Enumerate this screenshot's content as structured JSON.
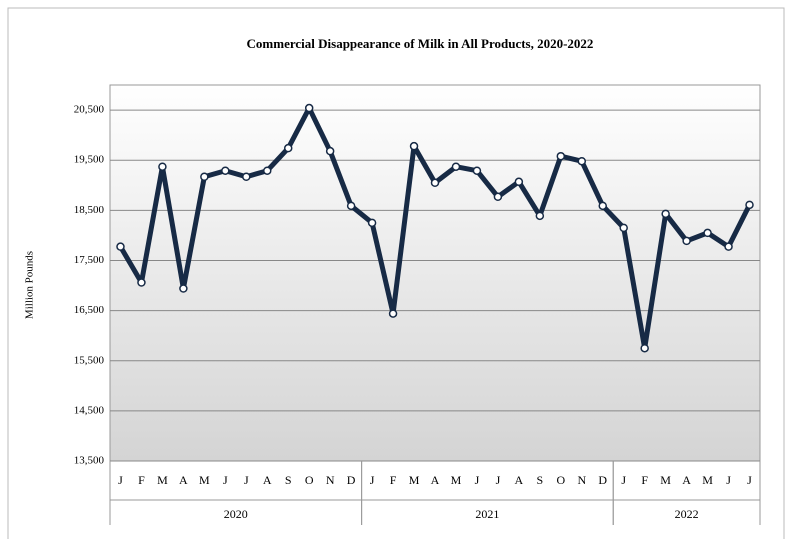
{
  "chart_data": {
    "type": "line",
    "title": "Commercial Disappearance of Milk in All Products, 2020-2022",
    "y_label": "Million Pounds",
    "categories": [
      [
        "J",
        "2020"
      ],
      [
        "F",
        "2020"
      ],
      [
        "M",
        "2020"
      ],
      [
        "A",
        "2020"
      ],
      [
        "M",
        "2020"
      ],
      [
        "J",
        "2020"
      ],
      [
        "J",
        "2020"
      ],
      [
        "A",
        "2020"
      ],
      [
        "S",
        "2020"
      ],
      [
        "O",
        "2020"
      ],
      [
        "N",
        "2020"
      ],
      [
        "D",
        "2020"
      ],
      [
        "J",
        "2021"
      ],
      [
        "F",
        "2021"
      ],
      [
        "M",
        "2021"
      ],
      [
        "A",
        "2021"
      ],
      [
        "M",
        "2021"
      ],
      [
        "J",
        "2021"
      ],
      [
        "J",
        "2021"
      ],
      [
        "A",
        "2021"
      ],
      [
        "S",
        "2021"
      ],
      [
        "O",
        "2021"
      ],
      [
        "N",
        "2021"
      ],
      [
        "D",
        "2021"
      ],
      [
        "J",
        "2022"
      ],
      [
        "F",
        "2022"
      ],
      [
        "M",
        "2022"
      ],
      [
        "A",
        "2022"
      ],
      [
        "M",
        "2022"
      ],
      [
        "J",
        "2022"
      ],
      [
        "J",
        "2022"
      ]
    ],
    "values": [
      17775,
      17060,
      19370,
      16940,
      19170,
      19290,
      19170,
      19290,
      19740,
      20540,
      19680,
      18590,
      18250,
      16440,
      19780,
      19050,
      19370,
      19290,
      18770,
      19070,
      18390,
      19580,
      19480,
      18590,
      18150,
      15750,
      18430,
      17890,
      18050,
      17775,
      18610
    ],
    "color": "#172a45",
    "ylim": [
      13500,
      21000
    ],
    "yticks": [
      {
        "value": 13500,
        "label": "13,500"
      },
      {
        "value": 14500,
        "label": "14,500"
      },
      {
        "value": 15500,
        "label": "15,500"
      },
      {
        "value": 16500,
        "label": "16,500"
      },
      {
        "value": 17500,
        "label": "17,500"
      },
      {
        "value": 18500,
        "label": "18,500"
      },
      {
        "value": 19500,
        "label": "19,500"
      },
      {
        "value": 20500,
        "label": "20,500"
      }
    ],
    "grid": true
  }
}
